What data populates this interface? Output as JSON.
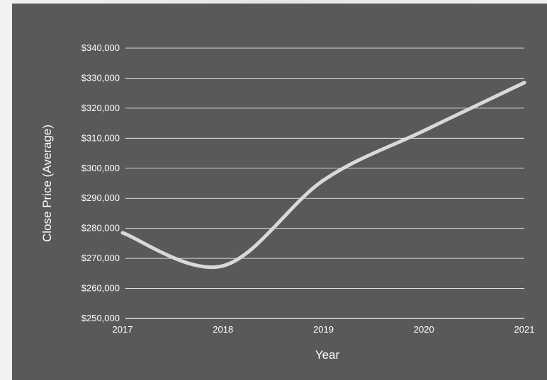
{
  "chart_data": {
    "type": "line",
    "title": "",
    "xlabel": "Year",
    "ylabel": "Close Price (Average)",
    "x": [
      "2017",
      "2018",
      "2019",
      "2020",
      "2021"
    ],
    "series": [
      {
        "values": [
          278500,
          267500,
          296000,
          312500,
          328500
        ]
      }
    ],
    "ylim": [
      250000,
      340000
    ],
    "y_ticks": [
      "$250,000",
      "$260,000",
      "$270,000",
      "$280,000",
      "$290,000",
      "$300,000",
      "$310,000",
      "$320,000",
      "$330,000",
      "$340,000"
    ],
    "grid": "horizontal",
    "legend": "none",
    "smooth": true
  },
  "colors": {
    "background": "#595959",
    "line": "#d9d9d9",
    "grid": "#ffffff",
    "text": "#ffffff"
  }
}
